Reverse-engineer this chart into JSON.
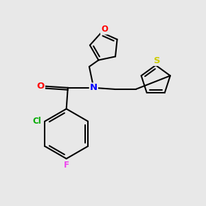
{
  "bg_color": "#e8e8e8",
  "bond_color": "#000000",
  "bond_width": 1.5,
  "atom_colors": {
    "O": "#ff0000",
    "N": "#0000ff",
    "S": "#cccc00",
    "Cl": "#00aa00",
    "F": "#ee44ee",
    "C": "#000000"
  },
  "font_size": 8.5
}
